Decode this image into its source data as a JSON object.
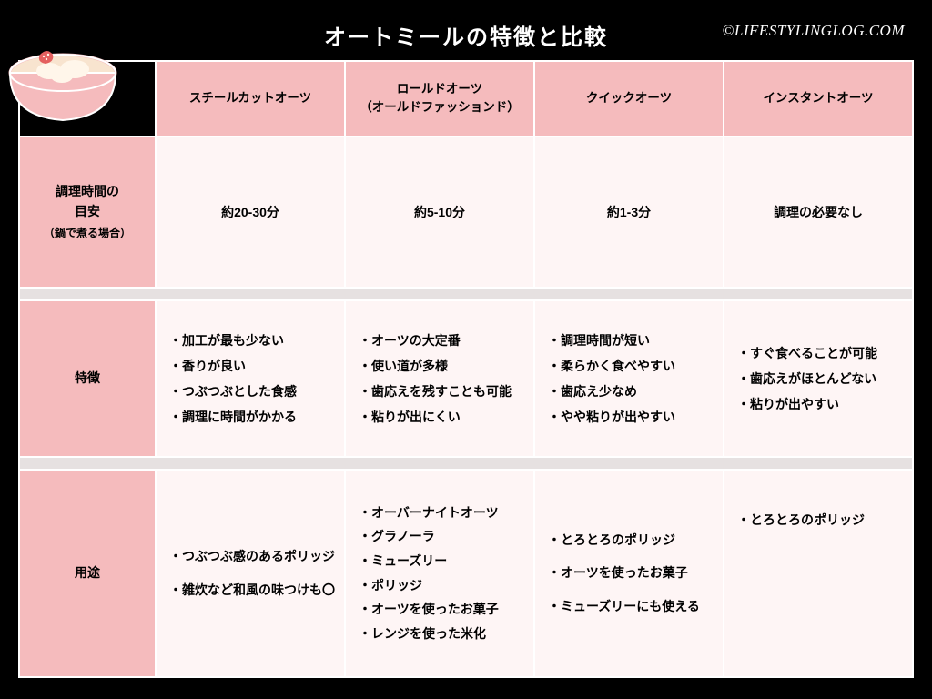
{
  "title": "オートミールの特徴と比較",
  "credit": "©LIFESTYLINGLOG.COM",
  "colors": {
    "page_bg": "#000000",
    "header_cell_bg": "#f5bbbd",
    "data_cell_bg": "#fef5f5",
    "gap_bg": "#e6e1e1",
    "border": "#ffffff",
    "title_text": "#ffffff",
    "body_text": "#000000"
  },
  "columns": [
    {
      "label": "スチールカットオーツ",
      "sub": ""
    },
    {
      "label": "ロールドオーツ",
      "sub": "（オールドファッションド）"
    },
    {
      "label": "クイックオーツ",
      "sub": ""
    },
    {
      "label": "インスタントオーツ",
      "sub": ""
    }
  ],
  "rows": [
    {
      "label": "調理時間の\n目安",
      "sub": "（鍋で煮る場合）",
      "type": "center",
      "cells": [
        "約20-30分",
        "約5-10分",
        "約1-3分",
        "調理の必要なし"
      ]
    },
    {
      "label": "特徴",
      "sub": "",
      "type": "bullets",
      "cells": [
        [
          "・加工が最も少ない",
          "・香りが良い",
          "・つぶつぶとした食感",
          "・調理に時間がかかる"
        ],
        [
          "・オーツの大定番",
          "・使い道が多様",
          "・歯応えを残すことも可能",
          "・粘りが出にくい"
        ],
        [
          "・調理時間が短い",
          "・柔らかく食べやすい",
          "・歯応え少なめ",
          "・やや粘りが出やすい"
        ],
        [
          "・すぐ食べることが可能",
          "・歯応えがほとんどない",
          "・粘りが出やすい"
        ]
      ]
    },
    {
      "label": "用途",
      "sub": "",
      "type": "bullets",
      "cells": [
        [
          "・つぶつぶ感のあるポリッジ",
          "・雑炊など和風の味つけも〇"
        ],
        [
          "・オーバーナイトオーツ",
          "・グラノーラ",
          "・ミューズリー",
          "・ポリッジ",
          "・オーツを使ったお菓子",
          "・レンジを使った米化"
        ],
        [
          "・とろとろのポリッジ",
          "・オーツを使ったお菓子",
          "・ミューズリーにも使える"
        ],
        [
          "・とろとろのポリッジ"
        ]
      ]
    }
  ]
}
